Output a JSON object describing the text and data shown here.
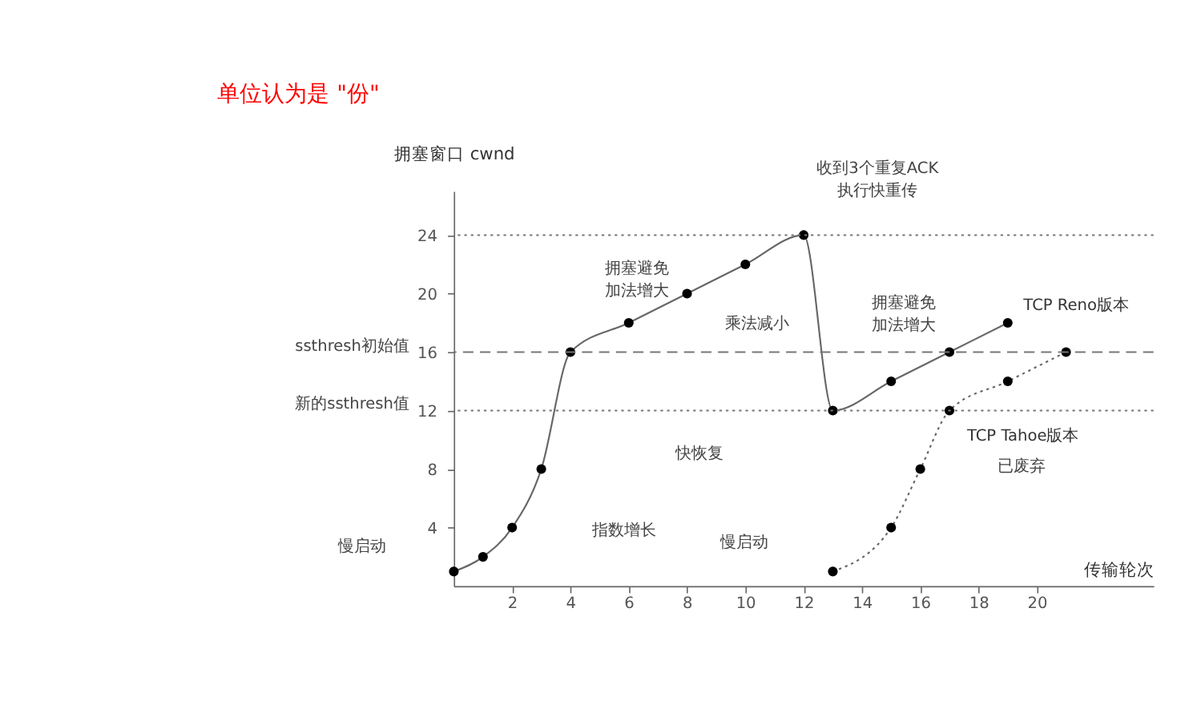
{
  "chart_data": {
    "type": "line",
    "title": "单位认为是 \"份\"",
    "xlabel": "传输轮次",
    "ylabel": "拥塞窗口 cwnd",
    "xlim": [
      0,
      24
    ],
    "ylim": [
      0,
      27
    ],
    "xticks": [
      2,
      4,
      6,
      8,
      10,
      12,
      14,
      16,
      18,
      20
    ],
    "yticks": [
      4,
      8,
      12,
      16,
      20,
      24
    ],
    "marker": "circle",
    "series": [
      {
        "name": "TCP Reno版本",
        "color": "#000000",
        "line_style": "solid",
        "x": [
          0,
          1,
          2,
          3,
          4,
          6,
          8,
          10,
          12,
          13,
          15,
          17,
          19
        ],
        "values": [
          1,
          2,
          4,
          8,
          16,
          18,
          20,
          22,
          24,
          12,
          14,
          16,
          18
        ]
      },
      {
        "name": "TCP Tahoe版本",
        "color": "#000000",
        "line_style": "dotted",
        "x": [
          13,
          15,
          16,
          17,
          19,
          21
        ],
        "values": [
          1,
          4,
          8,
          12,
          14,
          16
        ]
      }
    ],
    "ref_lines": [
      {
        "axis": "y",
        "value": 24,
        "line_style": "dotted"
      },
      {
        "axis": "y",
        "value": 16,
        "line_style": "dashed"
      },
      {
        "axis": "y",
        "value": 12,
        "line_style": "dotted"
      }
    ],
    "annotations": [
      "拥塞避免加法增大",
      "收到3个重复ACK执行快重传",
      "乘法减小",
      "拥塞避免加法增大",
      "快恢复",
      "已废弃",
      "慢启动",
      "指数增长",
      "慢启动",
      "ssthresh初始值",
      "新的ssthresh值"
    ]
  }
}
